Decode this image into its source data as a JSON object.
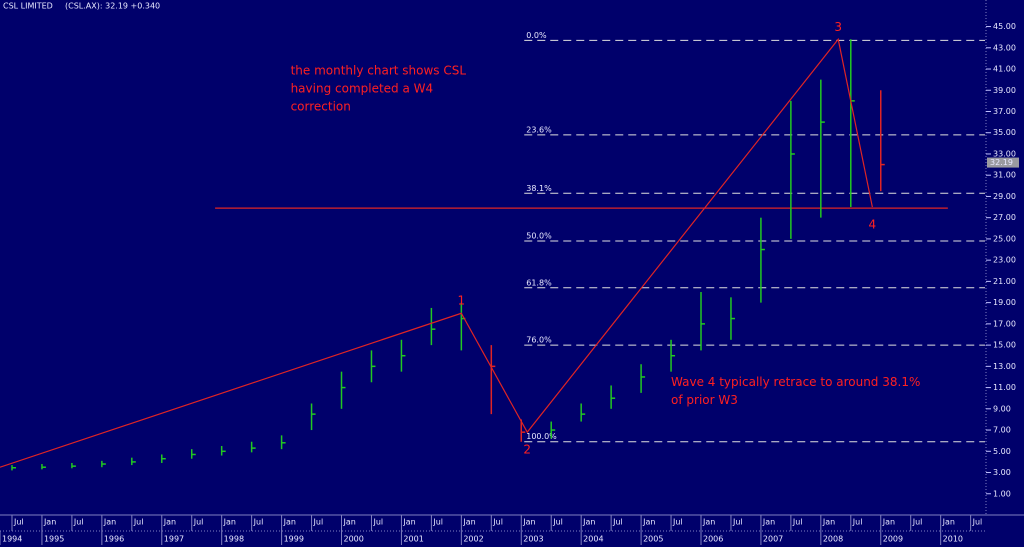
{
  "chart_data": {
    "type": "ohlc",
    "title": "CSL LIMITED",
    "subtitle": "(CSL.AX): 32.19 +0.340",
    "last_price": 32.19,
    "background": "#00006b",
    "up_color": "#22c822",
    "down_color": "#e02424",
    "x": [
      1994.5,
      1995.0,
      1995.5,
      1996.0,
      1996.5,
      1997.0,
      1997.5,
      1998.0,
      1998.5,
      1999.0,
      1999.5,
      2000.0,
      2000.5,
      2001.0,
      2001.5,
      2002.0,
      2002.5,
      2003.0,
      2003.5,
      2004.0,
      2004.5,
      2005.0,
      2005.5,
      2006.0,
      2006.5,
      2007.0,
      2007.5,
      2008.0,
      2008.5,
      2009.0
    ],
    "high": [
      3.7,
      3.8,
      3.9,
      4.1,
      4.4,
      4.7,
      5.2,
      5.5,
      5.9,
      6.5,
      9.5,
      12.5,
      14.5,
      15.5,
      18.5,
      19.0,
      15.0,
      8.0,
      7.8,
      9.5,
      11.2,
      13.2,
      15.5,
      20.0,
      19.5,
      27.0,
      38.0,
      40.0,
      43.8,
      39.0
    ],
    "low": [
      3.2,
      3.3,
      3.4,
      3.5,
      3.7,
      3.9,
      4.3,
      4.6,
      4.9,
      5.2,
      7.0,
      9.0,
      11.5,
      12.5,
      15.0,
      14.5,
      8.5,
      5.9,
      6.2,
      7.8,
      9.0,
      10.5,
      12.5,
      14.5,
      15.5,
      19.0,
      25.0,
      27.0,
      28.0,
      29.5
    ],
    "close": [
      3.45,
      3.5,
      3.6,
      3.8,
      4.0,
      4.3,
      4.7,
      5.0,
      5.3,
      5.8,
      8.5,
      11.0,
      13.0,
      14.0,
      16.5,
      17.5,
      13.0,
      6.8,
      7.0,
      8.5,
      10.0,
      12.0,
      14.0,
      17.0,
      17.5,
      24.0,
      33.0,
      36.0,
      38.0,
      32.0
    ],
    "xlim": [
      1994.3,
      2010.74
    ],
    "ylim": [
      -1.0,
      47.5
    ],
    "yticks": [
      {
        "value": 1,
        "label": "1.00"
      },
      {
        "value": 3,
        "label": "3.00"
      },
      {
        "value": 5,
        "label": "5.00"
      },
      {
        "value": 7,
        "label": "7.00"
      },
      {
        "value": 9,
        "label": "9.00"
      },
      {
        "value": 11,
        "label": "11.00"
      },
      {
        "value": 13,
        "label": "13.00"
      },
      {
        "value": 15,
        "label": "15.00"
      },
      {
        "value": 17,
        "label": "17.00"
      },
      {
        "value": 19,
        "label": "19.00"
      },
      {
        "value": 21,
        "label": "21.00"
      },
      {
        "value": 23,
        "label": "23.00"
      },
      {
        "value": 25,
        "label": "25.00"
      },
      {
        "value": 27,
        "label": "27.00"
      },
      {
        "value": 29,
        "label": "29.00"
      },
      {
        "value": 31,
        "label": "31.00"
      },
      {
        "value": 33,
        "label": "33.00"
      },
      {
        "value": 35,
        "label": "35.00"
      },
      {
        "value": 37,
        "label": "37.00"
      },
      {
        "value": 39,
        "label": "39.00"
      },
      {
        "value": 41,
        "label": "41.00"
      },
      {
        "value": 43,
        "label": "43.00"
      },
      {
        "value": 45,
        "label": "45.00"
      }
    ],
    "xticks_month": [
      {
        "value": 1994.5,
        "label": "Jul"
      },
      {
        "value": 1995.0,
        "label": "Jan"
      },
      {
        "value": 1995.5,
        "label": "Jul"
      },
      {
        "value": 1996.0,
        "label": "Jan"
      },
      {
        "value": 1996.5,
        "label": "Jul"
      },
      {
        "value": 1997.0,
        "label": "Jan"
      },
      {
        "value": 1997.5,
        "label": "Jul"
      },
      {
        "value": 1998.0,
        "label": "Jan"
      },
      {
        "value": 1998.5,
        "label": "Jul"
      },
      {
        "value": 1999.0,
        "label": "Jan"
      },
      {
        "value": 1999.5,
        "label": "Jul"
      },
      {
        "value": 2000.0,
        "label": "Jan"
      },
      {
        "value": 2000.5,
        "label": "Jul"
      },
      {
        "value": 2001.0,
        "label": "Jan"
      },
      {
        "value": 2001.5,
        "label": "Jul"
      },
      {
        "value": 2002.0,
        "label": "Jan"
      },
      {
        "value": 2002.5,
        "label": "Jul"
      },
      {
        "value": 2003.0,
        "label": "Jan"
      },
      {
        "value": 2003.5,
        "label": "Jul"
      },
      {
        "value": 2004.0,
        "label": "Jan"
      },
      {
        "value": 2004.5,
        "label": "Jul"
      },
      {
        "value": 2005.0,
        "label": "Jan"
      },
      {
        "value": 2005.5,
        "label": "Jul"
      },
      {
        "value": 2006.0,
        "label": "Jan"
      },
      {
        "value": 2006.5,
        "label": "Jul"
      },
      {
        "value": 2007.0,
        "label": "Jan"
      },
      {
        "value": 2007.5,
        "label": "Jul"
      },
      {
        "value": 2008.0,
        "label": "Jan"
      },
      {
        "value": 2008.5,
        "label": "Jul"
      },
      {
        "value": 2009.0,
        "label": "Jan"
      },
      {
        "value": 2009.5,
        "label": "Jul"
      },
      {
        "value": 2010.0,
        "label": "Jan"
      },
      {
        "value": 2010.5,
        "label": "Jul"
      }
    ],
    "xticks_year": [
      {
        "value": 1994.3,
        "label": "1994"
      },
      {
        "value": 1995,
        "label": "1995"
      },
      {
        "value": 1996,
        "label": "1996"
      },
      {
        "value": 1997,
        "label": "1997"
      },
      {
        "value": 1998,
        "label": "1998"
      },
      {
        "value": 1999,
        "label": "1999"
      },
      {
        "value": 2000,
        "label": "2000"
      },
      {
        "value": 2001,
        "label": "2001"
      },
      {
        "value": 2002,
        "label": "2002"
      },
      {
        "value": 2003,
        "label": "2003"
      },
      {
        "value": 2004,
        "label": "2004"
      },
      {
        "value": 2005,
        "label": "2005"
      },
      {
        "value": 2006,
        "label": "2006"
      },
      {
        "value": 2007,
        "label": "2007"
      },
      {
        "value": 2008,
        "label": "2008"
      },
      {
        "value": 2009,
        "label": "2009"
      },
      {
        "value": 2010,
        "label": "2010"
      }
    ],
    "fib_levels": [
      {
        "value": 43.7,
        "label": "0.0%"
      },
      {
        "value": 34.8,
        "label": "23.6%"
      },
      {
        "value": 29.3,
        "label": "38.1%"
      },
      {
        "value": 24.8,
        "label": "50.0%"
      },
      {
        "value": 20.4,
        "label": "61.8%"
      },
      {
        "value": 15.0,
        "label": "76.0%"
      },
      {
        "value": 5.9,
        "label": "100.0%"
      }
    ],
    "fib_start": 2003.05,
    "support_line": {
      "value": 27.9,
      "x": [
        1997.89,
        2010.12
      ]
    },
    "wave_points": [
      {
        "x": 1994.3,
        "y": 3.5
      },
      {
        "x": 2002.0,
        "y": 18.0
      },
      {
        "x": 2003.1,
        "y": 6.8
      },
      {
        "x": 2008.29,
        "y": 43.8
      },
      {
        "x": 2008.86,
        "y": 28.0
      }
    ],
    "wave_labels": [
      "1",
      "2",
      "3",
      "4"
    ],
    "annotations": [
      {
        "lines": [
          "the monthly chart shows CSL",
          "having completed a W4",
          "correction"
        ],
        "x": 1999.15,
        "y": 40.8
      },
      {
        "lines": [
          "Wave 4 typically retrace to around 38.1%",
          "of prior W3"
        ],
        "x": 2005.5,
        "y": 11.5
      }
    ]
  }
}
